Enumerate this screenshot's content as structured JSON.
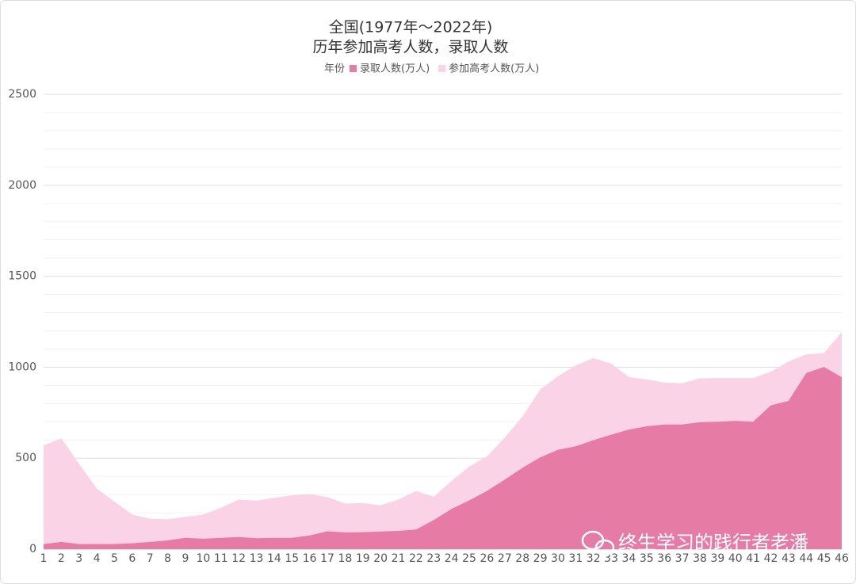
{
  "chart_data": {
    "type": "area",
    "title": "全国(1977年～2022年)",
    "subtitle": "历年参加高考人数，录取人数",
    "legend_title": "年份",
    "x": [
      1,
      2,
      3,
      4,
      5,
      6,
      7,
      8,
      9,
      10,
      11,
      12,
      13,
      14,
      15,
      16,
      17,
      18,
      19,
      20,
      21,
      22,
      23,
      24,
      25,
      26,
      27,
      28,
      29,
      30,
      31,
      32,
      33,
      34,
      35,
      36,
      37,
      38,
      39,
      40,
      41,
      42,
      43,
      44,
      45,
      46
    ],
    "xlim": [
      1,
      46
    ],
    "series": [
      {
        "name": "录取人数(万人)",
        "color": "#e67ba5",
        "values": [
          27,
          40,
          28,
          28,
          28,
          32,
          40,
          48,
          62,
          57,
          62,
          67,
          60,
          62,
          62,
          75,
          98,
          92,
          93,
          97,
          100,
          108,
          160,
          221,
          268,
          320,
          382,
          447,
          504,
          546,
          565,
          599,
          629,
          657,
          675,
          685,
          685,
          698,
          700,
          705,
          700,
          790,
          815,
          968,
          1001,
          945
        ]
      },
      {
        "name": "参加高考人数(万人)",
        "color": "#fad3e6",
        "values": [
          570,
          610,
          468,
          333,
          261,
          190,
          167,
          164,
          178,
          190,
          228,
          272,
          267,
          282,
          296,
          303,
          286,
          251,
          253,
          241,
          273,
          320,
          288,
          375,
          454,
          510,
          613,
          729,
          877,
          950,
          1010,
          1050,
          1020,
          946,
          933,
          915,
          912,
          939,
          940,
          940,
          940,
          975,
          1031,
          1071,
          1078,
          1193
        ]
      }
    ],
    "ylim": [
      0,
      2500
    ],
    "yticks": [
      0,
      500,
      1000,
      1500,
      2000,
      2500
    ],
    "grid": true,
    "watermark": "终生学习的践行者老潘"
  }
}
